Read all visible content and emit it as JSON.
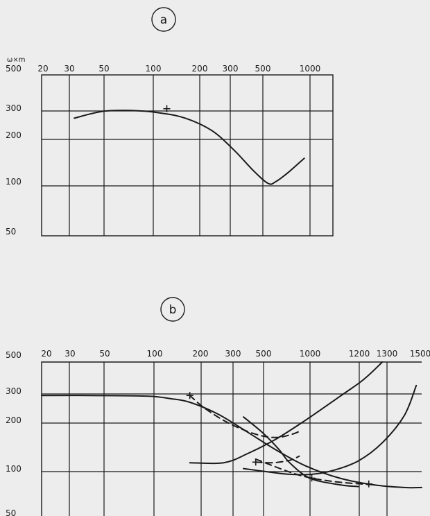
{
  "panels": [
    {
      "label": "a",
      "unit_label": "ω×m",
      "x_ticks": [
        "20",
        "30",
        "50",
        "100",
        "200",
        "300",
        "500",
        "1000"
      ],
      "y_ticks": [
        "500",
        "300",
        "200",
        "100",
        "50"
      ]
    },
    {
      "label": "b",
      "unit_label": "",
      "x_ticks": [
        "20",
        "30",
        "50",
        "100",
        "200",
        "300",
        "500",
        "1000",
        "1200",
        "1300",
        "1500"
      ],
      "y_ticks": [
        "500",
        "300",
        "200",
        "100",
        "50"
      ]
    }
  ],
  "colors": {
    "ink": "#1a1a1a",
    "background": "#ededed"
  },
  "chart_data": [
    {
      "type": "line",
      "title": "a",
      "x_scale": "log",
      "y_scale": "log",
      "ylabel": "ω×m",
      "xlim": [
        17,
        1050
      ],
      "ylim": [
        44,
        500
      ],
      "grid": true,
      "series": [
        {
          "style": "solid",
          "points": [
            [
              27,
              260
            ],
            [
              40,
              288
            ],
            [
              60,
              292
            ],
            [
              90,
              282
            ],
            [
              130,
              260
            ],
            [
              190,
              215
            ],
            [
              260,
              160
            ],
            [
              340,
              118
            ],
            [
              420,
              97
            ],
            [
              470,
              100
            ],
            [
              560,
              115
            ],
            [
              700,
              142
            ]
          ]
        }
      ],
      "markers": [
        [
          100,
          300
        ]
      ]
    },
    {
      "type": "line",
      "title": "b",
      "x_scale": "log",
      "y_scale": "log",
      "xlim": [
        17,
        1600
      ],
      "ylim": [
        44,
        500
      ],
      "grid": true,
      "series": [
        {
          "style": "solid",
          "points": [
            [
              17,
              295
            ],
            [
              30,
              295
            ],
            [
              60,
              292
            ],
            [
              80,
              280
            ],
            [
              100,
              265
            ],
            [
              140,
              220
            ],
            [
              200,
              165
            ],
            [
              280,
              125
            ],
            [
              400,
              97
            ],
            [
              600,
              80
            ],
            [
              900,
              72
            ],
            [
              1300,
              69
            ],
            [
              1600,
              69
            ]
          ]
        },
        {
          "style": "solid",
          "points": [
            [
              100,
              102
            ],
            [
              150,
              102
            ],
            [
              200,
              118
            ],
            [
              280,
              148
            ],
            [
              400,
              200
            ],
            [
              600,
              290
            ],
            [
              800,
              380
            ],
            [
              1000,
              500
            ]
          ]
        },
        {
          "style": "solid",
          "points": [
            [
              190,
              93
            ],
            [
              260,
              88
            ],
            [
              330,
              85
            ],
            [
              430,
              85
            ],
            [
              550,
              90
            ],
            [
              750,
              105
            ],
            [
              1000,
              140
            ],
            [
              1300,
              215
            ],
            [
              1500,
              345
            ]
          ]
        },
        {
          "style": "solid",
          "points": [
            [
              190,
              210
            ],
            [
              240,
              163
            ],
            [
              290,
              126
            ],
            [
              330,
              102
            ],
            [
              420,
              80
            ],
            [
              600,
              72
            ],
            [
              750,
              70
            ]
          ]
        },
        {
          "style": "dashed",
          "points": [
            [
              100,
              295
            ],
            [
              120,
              240
            ],
            [
              160,
              190
            ],
            [
              220,
              160
            ],
            [
              280,
              152
            ],
            [
              340,
              160
            ],
            [
              380,
              170
            ]
          ]
        },
        {
          "style": "dashed",
          "points": [
            [
              220,
              103
            ],
            [
              270,
              102
            ],
            [
              330,
              106
            ],
            [
              370,
              113
            ]
          ]
        },
        {
          "style": "dashed",
          "points": [
            [
              220,
              108
            ],
            [
              330,
              88
            ],
            [
              430,
              80
            ],
            [
              600,
              75
            ],
            [
              900,
              72
            ]
          ]
        }
      ],
      "markers": [
        [
          100,
          295
        ],
        [
          220,
          103
        ],
        [
          430,
          80
        ],
        [
          850,
          73
        ]
      ]
    }
  ]
}
